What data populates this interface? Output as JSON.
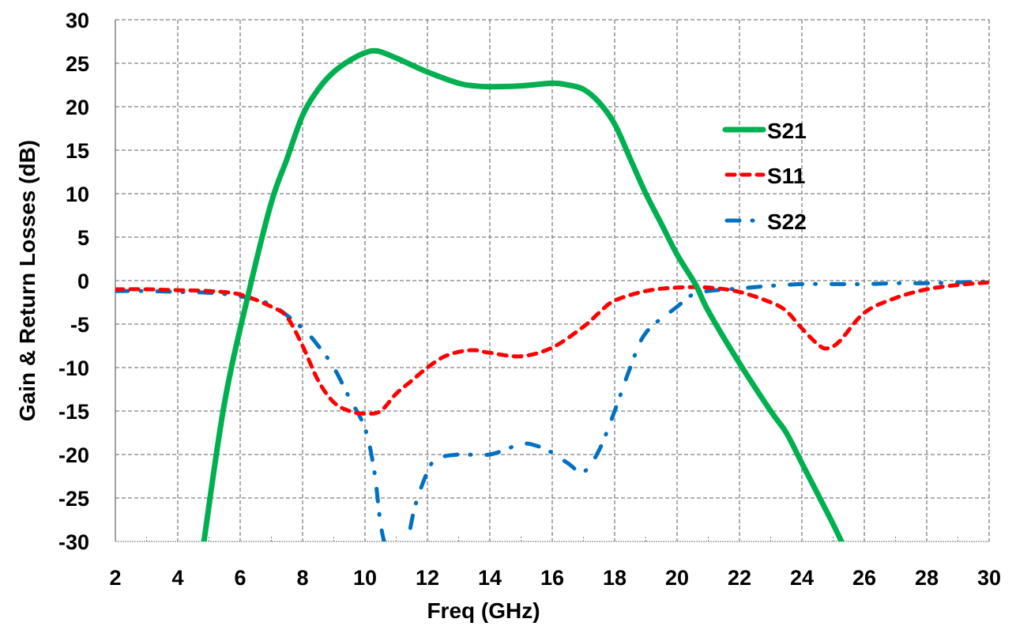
{
  "chart_data": {
    "type": "line",
    "title": "",
    "xlabel": "Freq (GHz)",
    "ylabel": "Gain & Return Losses (dB)",
    "xlim": [
      2,
      30
    ],
    "ylim": [
      -30,
      30
    ],
    "xticks": [
      2,
      4,
      6,
      8,
      10,
      12,
      14,
      16,
      18,
      20,
      22,
      24,
      26,
      28,
      30
    ],
    "yticks": [
      30,
      25,
      20,
      15,
      10,
      5,
      0,
      -5,
      -10,
      -15,
      -20,
      -25,
      -30
    ],
    "grid": true,
    "legend_position": "upper-right (inside plot)",
    "series": [
      {
        "name": "S21",
        "color": "#00b050",
        "style": "solid",
        "x": [
          4.8,
          5.5,
          6.3,
          7,
          7.5,
          8,
          8.5,
          9,
          9.5,
          10,
          10.4,
          11,
          12,
          13,
          13.5,
          14,
          15,
          16,
          16.5,
          17,
          17.5,
          18,
          18.5,
          19,
          19.5,
          20,
          20.6,
          21,
          22,
          23,
          23.5,
          24,
          24.5,
          25,
          25.4
        ],
        "values": [
          -31,
          -14,
          -1,
          9,
          14,
          19,
          22,
          24,
          25.3,
          26.2,
          26.4,
          25.6,
          24,
          22.7,
          22.4,
          22.3,
          22.4,
          22.7,
          22.5,
          22,
          20.5,
          18,
          14,
          10,
          6.5,
          3,
          -0.5,
          -3.5,
          -9.5,
          -15,
          -17.5,
          -21,
          -24.5,
          -28,
          -31
        ]
      },
      {
        "name": "S11",
        "color": "#ff0000",
        "style": "dashed",
        "x": [
          2,
          3,
          4,
          5,
          6,
          7,
          7.5,
          8,
          8.5,
          9,
          9.5,
          10,
          10.5,
          11,
          11.5,
          12,
          12.5,
          13,
          13.5,
          14,
          15,
          16,
          17,
          17.5,
          18,
          19,
          20,
          21,
          22,
          23,
          23.5,
          24,
          24.5,
          24.8,
          25.2,
          26,
          27,
          28,
          29,
          30
        ],
        "values": [
          -1,
          -1,
          -1.1,
          -1.2,
          -1.6,
          -3,
          -4.2,
          -7.5,
          -11.5,
          -14,
          -15,
          -15.3,
          -15,
          -13,
          -11.5,
          -10,
          -8.8,
          -8.2,
          -8,
          -8.3,
          -8.7,
          -7.7,
          -5.3,
          -3.7,
          -2.3,
          -1.2,
          -0.8,
          -0.8,
          -1.3,
          -2.5,
          -3.5,
          -5.5,
          -7.3,
          -7.8,
          -7,
          -3.7,
          -2,
          -1,
          -0.5,
          -0.2
        ]
      },
      {
        "name": "S22",
        "color": "#0070c0",
        "style": "dash-dot",
        "x": [
          2,
          3,
          4,
          5,
          6,
          7,
          8,
          8.5,
          9,
          9.5,
          10,
          10.3,
          10.5,
          10.7,
          11,
          11.3,
          11.6,
          12,
          12.3,
          13,
          14,
          15,
          15.5,
          16,
          16.5,
          17,
          17.5,
          18,
          18.5,
          19,
          20,
          20.5,
          21,
          22,
          23,
          24,
          25,
          26,
          27,
          28,
          29,
          30
        ],
        "values": [
          -1.2,
          -1.2,
          -1.3,
          -1.4,
          -1.8,
          -2.8,
          -5.5,
          -7.5,
          -10,
          -13.5,
          -17,
          -22,
          -28,
          -31,
          -33,
          -31,
          -26,
          -22,
          -20.5,
          -20,
          -20,
          -18.8,
          -19,
          -19.8,
          -21,
          -22,
          -19.5,
          -15,
          -10,
          -6,
          -3,
          -1.6,
          -1.2,
          -0.9,
          -0.6,
          -0.4,
          -0.4,
          -0.4,
          -0.3,
          -0.3,
          -0.2,
          -0.1
        ]
      }
    ]
  },
  "legend": {
    "items": [
      {
        "label": "S21",
        "color": "#00b050"
      },
      {
        "label": "S11",
        "color": "#ff0000"
      },
      {
        "label": "S22",
        "color": "#0070c0"
      }
    ]
  },
  "axes": {
    "x_title": "Freq (GHz)",
    "y_title": "Gain & Return Losses (dB)"
  }
}
